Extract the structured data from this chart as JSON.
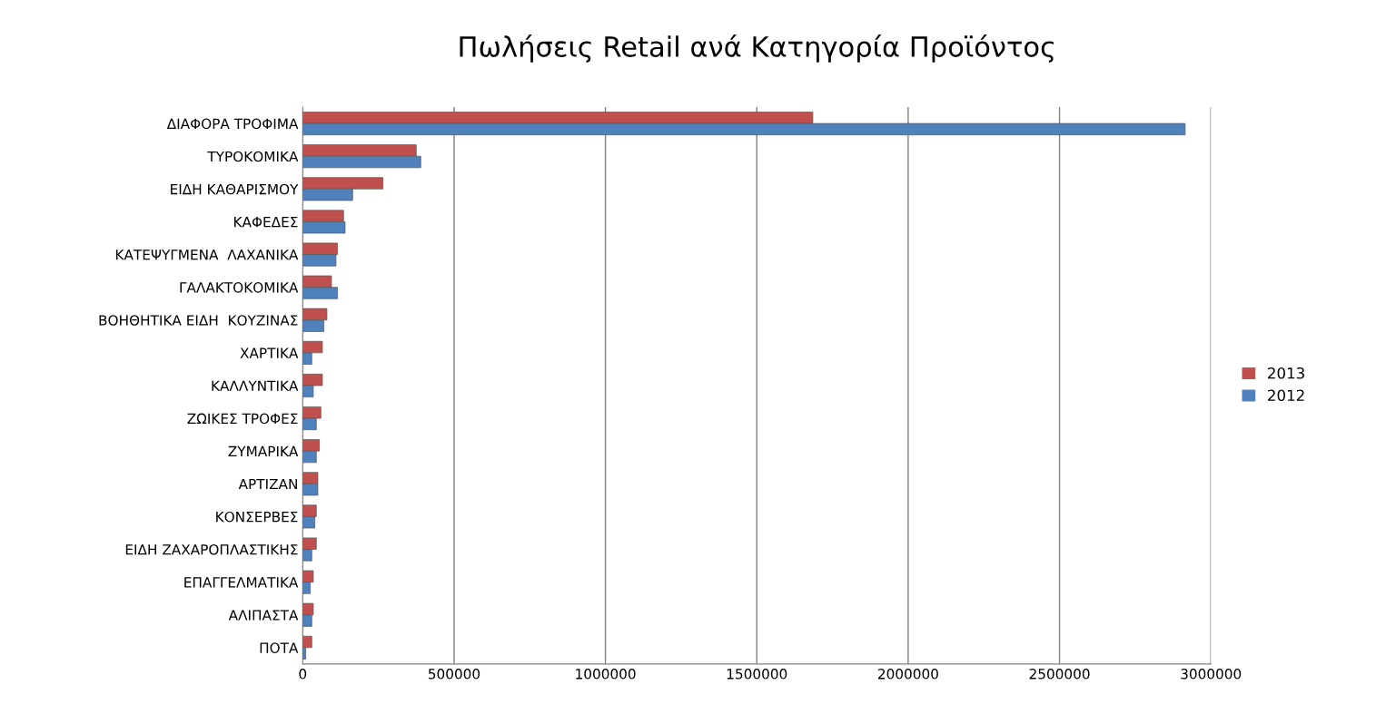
{
  "chart_data": {
    "type": "bar",
    "orientation": "horizontal",
    "title": "Πωλήσεις Retail ανά Κατηγορία Προϊόντος",
    "categories": [
      "ΔΙΑΦΟΡΑ ΤΡΟΦΙΜΑ",
      "ΤΥΡΟΚΟΜΙΚΑ",
      "ΕΙΔΗ ΚΑΘΑΡΙΣΜΟΥ",
      "ΚΑΦΕΔΕΣ",
      "ΚΑΤΕΨΥΓΜΕΝΑ  ΛΑΧΑΝΙΚΑ",
      "ΓΑΛΑΚΤΟΚΟΜΙΚΑ",
      "ΒΟΗΘΗΤΙΚΑ ΕΙΔΗ  ΚΟΥΖΙΝΑΣ",
      "ΧΑΡΤΙΚΑ",
      "ΚΑΛΛΥΝΤΙΚΑ",
      "ΖΩΙΚΕΣ ΤΡΟΦΕΣ",
      "ΖΥΜΑΡΙΚΑ",
      "ΑΡΤΙΖΑΝ",
      "ΚΟΝΣΕΡΒΕΣ",
      "ΕΙΔΗ ΖΑΧΑΡΟΠΛΑΣΤΙΚΗΣ",
      "ΕΠΑΓΓΕΛΜΑΤΙΚΑ",
      "ΑΛΙΠΑΣΤΑ",
      "ΠΟΤΑ"
    ],
    "series": [
      {
        "name": "2013",
        "color": "#c0504d",
        "values": [
          1685000,
          375000,
          265000,
          135000,
          115000,
          95000,
          80000,
          65000,
          65000,
          60000,
          55000,
          50000,
          45000,
          45000,
          35000,
          35000,
          30000
        ]
      },
      {
        "name": "2012",
        "color": "#4f81bd",
        "values": [
          2915000,
          390000,
          165000,
          140000,
          110000,
          115000,
          70000,
          30000,
          35000,
          45000,
          45000,
          50000,
          40000,
          30000,
          25000,
          30000,
          10000
        ]
      }
    ],
    "xlim": [
      0,
      3000000
    ],
    "xticks": [
      0,
      500000,
      1000000,
      1500000,
      2000000,
      2500000,
      3000000
    ],
    "grid": "x",
    "legend": "right"
  }
}
